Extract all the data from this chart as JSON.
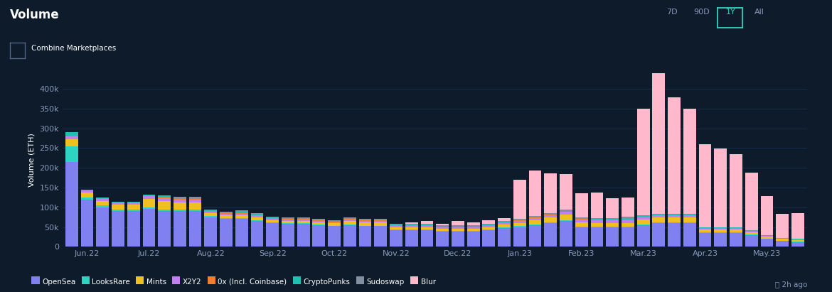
{
  "title": "Volume",
  "ylabel": "Volume (ETH)",
  "bg_color": "#0d1b2a",
  "plot_bg_color": "#0d1b2a",
  "grid_color": "#1a3050",
  "text_color": "#ffffff",
  "axis_label_color": "#8899bb",
  "button_labels": [
    "7D",
    "90D",
    "1Y",
    "All"
  ],
  "active_button": "1Y",
  "active_btn_color": "#2dd4bf",
  "footer_text": "2h ago",
  "legend_items": [
    "OpenSea",
    "LooksRare",
    "Mints",
    "X2Y2",
    "0x (Incl. Coinbase)",
    "CryptoPunks",
    "Sudoswap",
    "Blur"
  ],
  "colors": {
    "OpenSea": "#8080f0",
    "LooksRare": "#2dd4bf",
    "Mints": "#f0c020",
    "X2Y2": "#c080f0",
    "0x (Incl. Coinbase)": "#f08030",
    "CryptoPunks": "#20c0b0",
    "Sudoswap": "#8090a0",
    "Blur": "#ffb8cc"
  },
  "xtick_positions": [
    1,
    5,
    9,
    13,
    17,
    21,
    25,
    29,
    33,
    37,
    41,
    45
  ],
  "xtick_labels": [
    "Jun.22",
    "Jul.22",
    "Aug.22",
    "Sep.22",
    "Oct.22",
    "Nov.22",
    "Dec.22",
    "Jan.23",
    "Feb.23",
    "Mar.23",
    "Apr.23",
    "May.23"
  ],
  "yticks": [
    0,
    50000,
    100000,
    150000,
    200000,
    250000,
    300000,
    350000,
    400000
  ],
  "ytick_labels": [
    "0",
    "50k",
    "100k",
    "150k",
    "200k",
    "250k",
    "300k",
    "350k",
    "400k"
  ],
  "ylim": [
    0,
    440000
  ],
  "data": {
    "OpenSea": [
      215000,
      120000,
      100000,
      90000,
      90000,
      95000,
      90000,
      90000,
      90000,
      75000,
      70000,
      70000,
      65000,
      60000,
      58000,
      58000,
      55000,
      52000,
      55000,
      52000,
      52000,
      42000,
      42000,
      42000,
      38000,
      38000,
      38000,
      42000,
      48000,
      50000,
      55000,
      60000,
      65000,
      50000,
      50000,
      50000,
      50000,
      55000,
      60000,
      60000,
      60000,
      35000,
      35000,
      35000,
      30000,
      20000,
      15000,
      12000
    ],
    "LooksRare": [
      40000,
      5000,
      4000,
      4000,
      4000,
      4000,
      4000,
      4000,
      4000,
      2000,
      2000,
      2000,
      2000,
      1500,
      1500,
      1500,
      1500,
      1500,
      1500,
      1500,
      1500,
      1500,
      1500,
      1500,
      1500,
      1500,
      1500,
      1500,
      1500,
      2000,
      2000,
      2000,
      2000,
      1500,
      1500,
      1500,
      1500,
      2000,
      2000,
      2000,
      2000,
      1000,
      1000,
      1000,
      1000,
      500,
      500,
      500
    ],
    "Mints": [
      18000,
      12000,
      12000,
      12000,
      12000,
      22000,
      22000,
      18000,
      18000,
      8000,
      8000,
      8000,
      8000,
      6000,
      6000,
      6000,
      6000,
      6000,
      8000,
      8000,
      8000,
      6000,
      6000,
      6000,
      6000,
      6000,
      6000,
      6000,
      6000,
      8000,
      10000,
      12000,
      15000,
      10000,
      8000,
      8000,
      8000,
      12000,
      12000,
      12000,
      12000,
      8000,
      8000,
      8000,
      6000,
      5000,
      4000,
      4000
    ],
    "X2Y2": [
      6000,
      5000,
      5000,
      5000,
      5000,
      7000,
      7000,
      7000,
      7000,
      4000,
      4000,
      4000,
      4000,
      3000,
      3000,
      3000,
      3000,
      3000,
      4000,
      4000,
      4000,
      3000,
      3000,
      3000,
      3000,
      3000,
      3000,
      4000,
      5000,
      5000,
      6000,
      6000,
      6000,
      8000,
      8000,
      8000,
      8000,
      5000,
      5000,
      5000,
      5000,
      2000,
      2000,
      2000,
      1500,
      1500,
      1500,
      1500
    ],
    "0x (Incl. Coinbase)": [
      2500,
      1500,
      1500,
      1500,
      1500,
      1500,
      1500,
      1500,
      1500,
      1500,
      1500,
      1500,
      1500,
      1500,
      1500,
      1500,
      1500,
      1500,
      1500,
      1500,
      1500,
      1500,
      1500,
      1500,
      1500,
      1500,
      1500,
      1500,
      1500,
      1500,
      1500,
      1500,
      1500,
      1500,
      1500,
      1500,
      1500,
      1500,
      1500,
      1500,
      1500,
      1000,
      1000,
      1000,
      1000,
      500,
      500,
      500
    ],
    "CryptoPunks": [
      8000,
      1500,
      1500,
      1500,
      1500,
      2000,
      4000,
      2500,
      2500,
      1500,
      1500,
      4000,
      1500,
      1500,
      1500,
      1500,
      1500,
      1500,
      1500,
      1500,
      1500,
      1500,
      1500,
      1500,
      1500,
      1500,
      1500,
      1500,
      1500,
      1500,
      1500,
      1500,
      1500,
      1500,
      1500,
      1500,
      4000,
      1500,
      1500,
      1500,
      1500,
      1500,
      1500,
      1500,
      1500,
      1000,
      1000,
      1000
    ],
    "Sudoswap": [
      0,
      0,
      0,
      0,
      0,
      0,
      1500,
      4000,
      4000,
      2500,
      2500,
      2500,
      2500,
      2500,
      2500,
      2500,
      2500,
      2500,
      2500,
      2500,
      2500,
      2500,
      2500,
      2500,
      2500,
      2500,
      2500,
      2500,
      2500,
      2500,
      2500,
      2500,
      2500,
      2500,
      2500,
      2500,
      2500,
      2000,
      2000,
      2000,
      2000,
      1000,
      1000,
      1000,
      1000,
      500,
      500,
      500
    ],
    "Blur": [
      0,
      0,
      0,
      0,
      0,
      0,
      0,
      0,
      0,
      0,
      0,
      0,
      0,
      0,
      0,
      0,
      0,
      0,
      0,
      0,
      0,
      0,
      4000,
      8000,
      4000,
      12000,
      8000,
      8000,
      6000,
      100000,
      115000,
      100000,
      90000,
      60000,
      65000,
      50000,
      50000,
      270000,
      360000,
      295000,
      265000,
      210000,
      200000,
      185000,
      145000,
      100000,
      60000,
      65000
    ]
  }
}
